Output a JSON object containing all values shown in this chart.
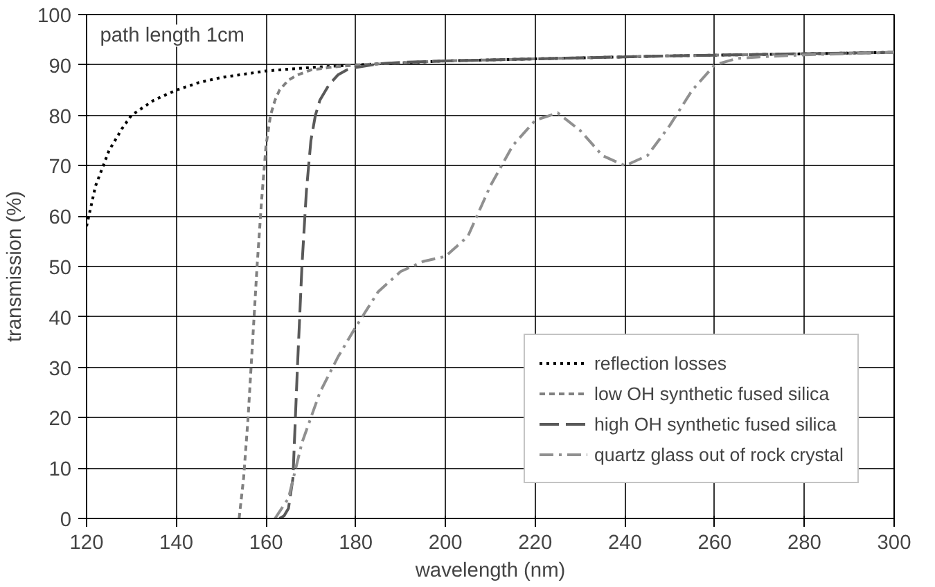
{
  "chart_data": {
    "type": "line",
    "xlabel": "wavelength (nm)",
    "ylabel": "transmission (%)",
    "annotations": [
      "path length 1cm"
    ],
    "xlim": [
      120,
      300
    ],
    "xticks": [
      120,
      140,
      160,
      180,
      200,
      220,
      240,
      260,
      280,
      300
    ],
    "ylim": [
      0,
      100
    ],
    "yticks": [
      0,
      10,
      20,
      30,
      40,
      50,
      60,
      70,
      80,
      90,
      100
    ],
    "grid": true,
    "legend": "bottom right",
    "marker": "none",
    "series": [
      {
        "name": "reflection losses",
        "color": "#000000",
        "line_style": "dotted",
        "x": [
          120,
          122,
          125,
          128,
          130,
          135,
          140,
          145,
          150,
          160,
          170,
          180,
          200,
          220,
          250,
          280,
          300
        ],
        "values": [
          58,
          66,
          73,
          77.5,
          80,
          83,
          85,
          86.5,
          87.5,
          88.8,
          89.5,
          90,
          90.8,
          91.2,
          91.8,
          92.2,
          92.5
        ]
      },
      {
        "name": "low OH synthetic fused silica",
        "color": "#808080",
        "line_style": "dashed",
        "x": [
          154,
          155,
          156,
          157,
          158,
          159,
          160,
          161,
          162,
          163,
          165,
          167,
          170,
          175,
          180,
          200,
          250,
          300
        ],
        "values": [
          0,
          8,
          20,
          35,
          50,
          63,
          74,
          80,
          83,
          85,
          87,
          88,
          89,
          89.6,
          90,
          90.8,
          91.8,
          92.5
        ]
      },
      {
        "name": "high OH synthetic fused silica",
        "color": "#595959",
        "line_style": "long_dash",
        "x": [
          163,
          164,
          165,
          166,
          167,
          168,
          169,
          170,
          171,
          172,
          174,
          176,
          178,
          180,
          185,
          190,
          200,
          250,
          300
        ],
        "values": [
          0,
          0.5,
          2,
          8,
          30,
          50,
          65,
          75,
          80,
          83,
          86,
          88,
          89,
          89.5,
          90.2,
          90.5,
          90.8,
          91.8,
          92.5
        ]
      },
      {
        "name": "quartz glass out of rock crystal",
        "color": "#909090",
        "line_style": "dashdot",
        "x": [
          162,
          165,
          168,
          172,
          176,
          180,
          185,
          190,
          195,
          200,
          205,
          210,
          215,
          220,
          225,
          230,
          235,
          240,
          245,
          250,
          255,
          260,
          265,
          270,
          280,
          300
        ],
        "values": [
          0,
          4,
          15,
          25,
          32,
          38,
          45,
          49,
          51,
          52,
          56,
          66,
          74,
          79,
          80.5,
          77,
          72,
          70,
          72,
          78,
          85,
          90,
          91.3,
          91.6,
          92,
          92.5
        ]
      }
    ]
  }
}
